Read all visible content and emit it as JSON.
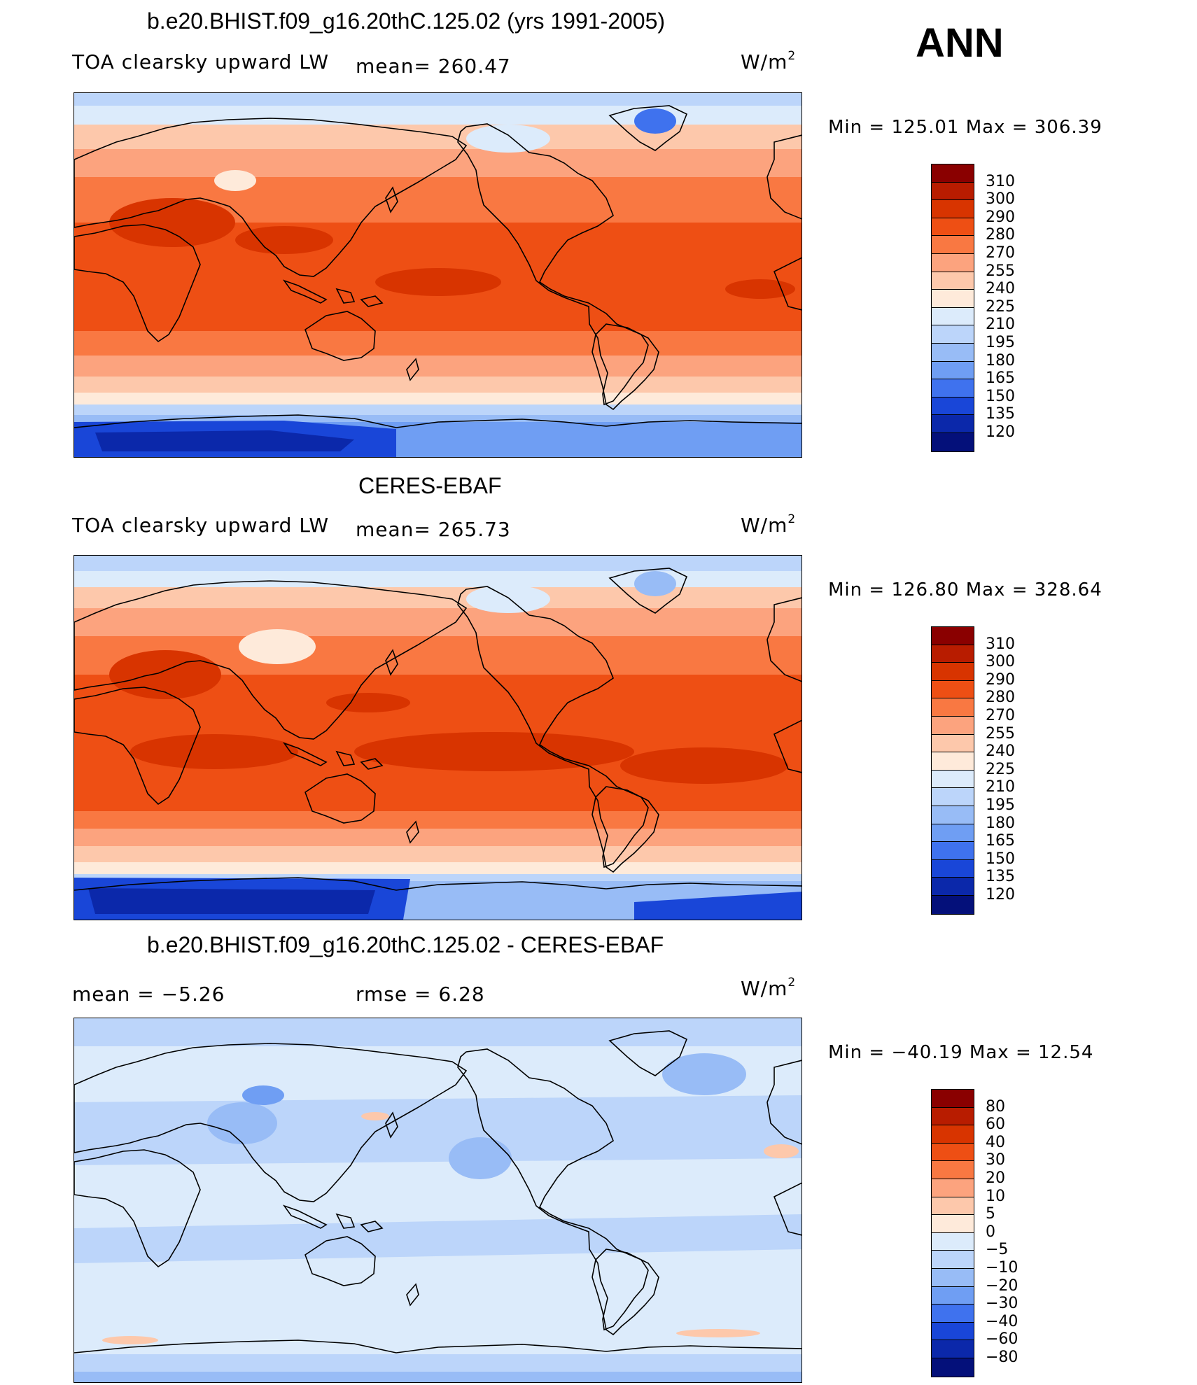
{
  "season": "ANN",
  "units": "W/m",
  "units_exp": "2",
  "panels": [
    {
      "title": "b.e20.BHIST.f09_g16.20thC.125.02 (yrs 1991-2005)",
      "left_label": "TOA clearsky upward LW",
      "mean_label": "mean= 260.47",
      "minmax": "Min = 125.01 Max = 306.39"
    },
    {
      "title": "CERES-EBAF",
      "left_label": "TOA clearsky upward LW",
      "mean_label": "mean= 265.73",
      "minmax": "Min = 126.80 Max = 328.64"
    },
    {
      "title": "b.e20.BHIST.f09_g16.20thC.125.02 - CERES-EBAF",
      "left_label": "mean =   −5.26",
      "mean_label": "rmse =    6.28",
      "minmax": "Min = −40.19 Max =  12.54"
    }
  ],
  "colorbar_abs": {
    "labels": [
      "310",
      "300",
      "290",
      "280",
      "270",
      "255",
      "240",
      "225",
      "210",
      "195",
      "180",
      "165",
      "150",
      "135",
      "120"
    ],
    "colors": [
      "#8a0000",
      "#b81c00",
      "#d83400",
      "#ee4f14",
      "#f97842",
      "#fca37e",
      "#fdc8ab",
      "#feeada",
      "#dcebfb",
      "#bcd5fa",
      "#98bcf6",
      "#6f9ef3",
      "#3f72ee",
      "#1946d8",
      "#0b28aa",
      "#04107a"
    ]
  },
  "colorbar_diff": {
    "labels": [
      "80",
      "60",
      "40",
      "30",
      "20",
      "10",
      "5",
      "0",
      "−5",
      "−10",
      "−20",
      "−30",
      "−40",
      "−60",
      "−80"
    ],
    "colors": [
      "#8a0000",
      "#b81c00",
      "#d83400",
      "#ee4f14",
      "#f97842",
      "#fca37e",
      "#fdc8ab",
      "#feeada",
      "#dcebfb",
      "#bcd5fa",
      "#98bcf6",
      "#6f9ef3",
      "#3f72ee",
      "#1946d8",
      "#0b28aa",
      "#04107a"
    ]
  }
}
